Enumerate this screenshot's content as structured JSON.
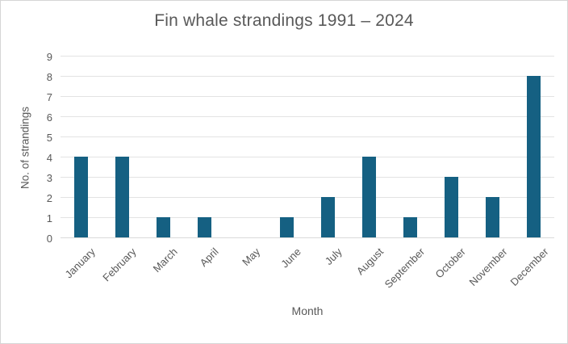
{
  "chart_data": {
    "type": "bar",
    "title": "Fin whale strandings 1991 – 2024",
    "xlabel": "Month",
    "ylabel": "No. of strandings",
    "categories": [
      "January",
      "February",
      "March",
      "April",
      "May",
      "June",
      "July",
      "August",
      "September",
      "October",
      "November",
      "December"
    ],
    "values": [
      4,
      4,
      1,
      1,
      0,
      1,
      2,
      4,
      1,
      3,
      2,
      8
    ],
    "ylim": [
      0,
      9
    ],
    "ytick_step": 1,
    "grid": true,
    "legend_position": "none",
    "colors": {
      "bar": "#156082",
      "gridline": "#e3e3e3",
      "axis_line": "#d9d9d9",
      "text": "#595959",
      "frame_border": "#d6d6d6",
      "background": "#ffffff"
    }
  }
}
